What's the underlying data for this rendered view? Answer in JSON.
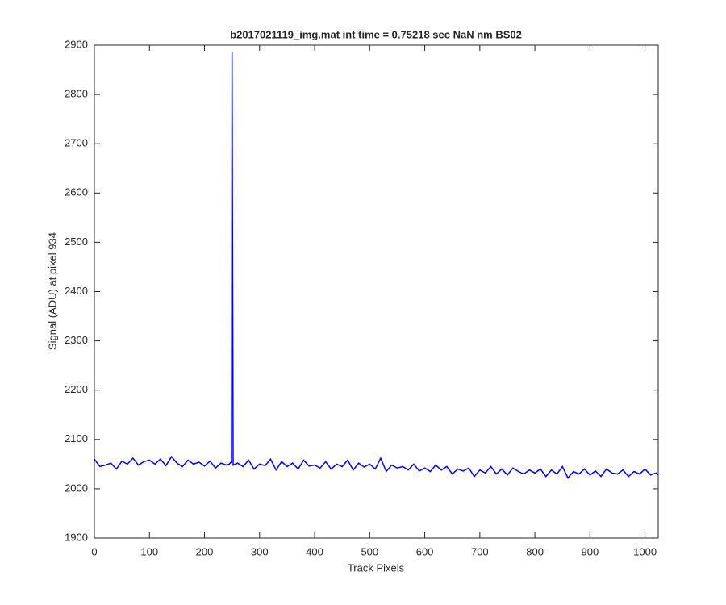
{
  "chart_data": {
    "type": "line",
    "title": "b2017021119_img.mat int time = 0.75218 sec  NaN nm BS02",
    "x_label": "Track Pixels",
    "y_label": "Signal (ADU) at pixel 934",
    "xlim": [
      0,
      1024
    ],
    "ylim": [
      1900,
      2900
    ],
    "xticks": [
      0,
      100,
      200,
      300,
      400,
      500,
      600,
      700,
      800,
      900,
      1000
    ],
    "yticks": [
      1900,
      2000,
      2100,
      2200,
      2300,
      2400,
      2500,
      2600,
      2700,
      2800,
      2900
    ],
    "x": [
      0,
      10,
      20,
      30,
      40,
      50,
      60,
      70,
      80,
      90,
      100,
      110,
      120,
      130,
      140,
      150,
      160,
      170,
      180,
      190,
      200,
      210,
      220,
      230,
      240,
      245,
      249,
      250,
      252,
      260,
      270,
      280,
      290,
      300,
      310,
      320,
      330,
      340,
      350,
      360,
      370,
      380,
      390,
      400,
      410,
      420,
      430,
      440,
      450,
      460,
      470,
      480,
      490,
      500,
      510,
      520,
      530,
      540,
      550,
      560,
      570,
      580,
      590,
      600,
      610,
      620,
      630,
      640,
      650,
      660,
      670,
      680,
      690,
      700,
      710,
      720,
      730,
      740,
      750,
      760,
      770,
      780,
      790,
      800,
      810,
      820,
      830,
      840,
      850,
      860,
      870,
      880,
      890,
      900,
      910,
      920,
      930,
      940,
      950,
      960,
      970,
      980,
      990,
      1000,
      1010,
      1020,
      1023
    ],
    "series": [
      {
        "name": "Signal",
        "color": "#0000ff",
        "values": [
          2060,
          2045,
          2048,
          2052,
          2040,
          2056,
          2050,
          2062,
          2048,
          2055,
          2058,
          2050,
          2060,
          2047,
          2065,
          2052,
          2045,
          2058,
          2050,
          2054,
          2046,
          2056,
          2042,
          2052,
          2048,
          2050,
          2055,
          2887,
          2048,
          2052,
          2045,
          2058,
          2040,
          2050,
          2047,
          2060,
          2038,
          2055,
          2045,
          2052,
          2040,
          2058,
          2046,
          2048,
          2042,
          2055,
          2040,
          2050,
          2045,
          2058,
          2038,
          2052,
          2044,
          2050,
          2040,
          2062,
          2035,
          2048,
          2042,
          2045,
          2038,
          2050,
          2036,
          2042,
          2035,
          2048,
          2038,
          2045,
          2030,
          2040,
          2036,
          2042,
          2025,
          2038,
          2032,
          2045,
          2030,
          2040,
          2028,
          2042,
          2035,
          2030,
          2038,
          2032,
          2040,
          2025,
          2038,
          2030,
          2045,
          2022,
          2035,
          2030,
          2040,
          2028,
          2036,
          2025,
          2040,
          2032,
          2030,
          2038,
          2025,
          2035,
          2030,
          2040,
          2028,
          2032,
          2028
        ]
      }
    ]
  }
}
